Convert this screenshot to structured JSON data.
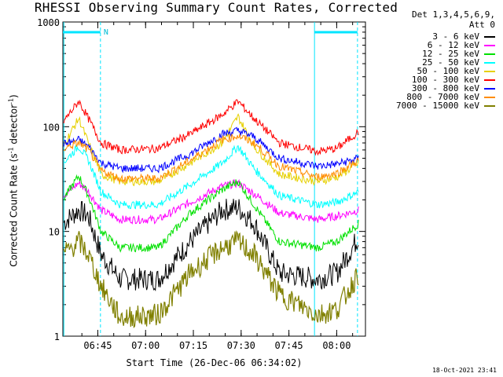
{
  "chart_data": {
    "type": "line",
    "title": "RHESSI Observing Summary Count Rates, Corrected",
    "ylabel_main": "Corrected Count Rate (s",
    "ylabel_sup1": "-1",
    "ylabel_mid": " detector",
    "ylabel_sup2": "-1",
    "ylabel_end": ")",
    "xlabel": "Start Time (26-Dec-06 06:34:02)",
    "yscale": "log",
    "ylim": [
      1,
      1000
    ],
    "xlim": [
      "06:34:02",
      "08:09:00"
    ],
    "y_ticks": [
      "1",
      "10",
      "100",
      "1000"
    ],
    "x_ticks": [
      "06:45",
      "07:00",
      "07:15",
      "07:30",
      "07:45",
      "08:00"
    ],
    "legend_header": [
      "Det 1,3,4,5,6,9,",
      "Att 0"
    ],
    "annotations": {
      "night_marker": "N"
    },
    "timestamp": "18-Oct-2021 23:41",
    "series": [
      {
        "name": "3 - 6 keV",
        "color": "#000000",
        "values": [
          [
            0,
            12
          ],
          [
            5,
            16
          ],
          [
            8,
            14
          ],
          [
            12,
            6
          ],
          [
            18,
            3.5
          ],
          [
            30,
            3.5
          ],
          [
            40,
            8
          ],
          [
            50,
            16
          ],
          [
            55,
            17
          ],
          [
            60,
            12
          ],
          [
            68,
            4
          ],
          [
            80,
            3.5
          ],
          [
            86,
            4
          ],
          [
            93,
            9
          ]
        ]
      },
      {
        "name": "6 - 12 keV",
        "color": "#ff00ff",
        "values": [
          [
            0,
            22
          ],
          [
            5,
            29
          ],
          [
            8,
            24
          ],
          [
            12,
            16
          ],
          [
            18,
            13
          ],
          [
            30,
            13
          ],
          [
            40,
            19
          ],
          [
            50,
            27
          ],
          [
            55,
            29
          ],
          [
            60,
            23
          ],
          [
            68,
            15
          ],
          [
            80,
            13
          ],
          [
            86,
            14
          ],
          [
            93,
            16
          ]
        ]
      },
      {
        "name": "12 - 25 keV",
        "color": "#00e000",
        "values": [
          [
            0,
            20
          ],
          [
            5,
            34
          ],
          [
            8,
            22
          ],
          [
            12,
            10
          ],
          [
            18,
            7
          ],
          [
            30,
            7
          ],
          [
            40,
            15
          ],
          [
            50,
            25
          ],
          [
            55,
            30
          ],
          [
            60,
            18
          ],
          [
            68,
            8
          ],
          [
            80,
            7
          ],
          [
            86,
            8
          ],
          [
            93,
            12
          ]
        ]
      },
      {
        "name": "25 - 50 keV",
        "color": "#00ffff",
        "values": [
          [
            0,
            45
          ],
          [
            5,
            65
          ],
          [
            8,
            48
          ],
          [
            12,
            24
          ],
          [
            18,
            18
          ],
          [
            30,
            18
          ],
          [
            40,
            28
          ],
          [
            50,
            45
          ],
          [
            55,
            65
          ],
          [
            60,
            40
          ],
          [
            68,
            22
          ],
          [
            80,
            18
          ],
          [
            86,
            19
          ],
          [
            93,
            24
          ]
        ]
      },
      {
        "name": "50 - 100 keV",
        "color": "#e6d000",
        "values": [
          [
            0,
            65
          ],
          [
            5,
            120
          ],
          [
            8,
            70
          ],
          [
            12,
            35
          ],
          [
            18,
            30
          ],
          [
            30,
            30
          ],
          [
            40,
            45
          ],
          [
            50,
            70
          ],
          [
            55,
            125
          ],
          [
            60,
            65
          ],
          [
            68,
            35
          ],
          [
            80,
            30
          ],
          [
            86,
            33
          ],
          [
            93,
            45
          ]
        ]
      },
      {
        "name": "100 - 300 keV",
        "color": "#ff0000",
        "values": [
          [
            0,
            110
          ],
          [
            5,
            175
          ],
          [
            8,
            120
          ],
          [
            12,
            70
          ],
          [
            18,
            60
          ],
          [
            30,
            62
          ],
          [
            40,
            85
          ],
          [
            50,
            130
          ],
          [
            55,
            175
          ],
          [
            60,
            120
          ],
          [
            68,
            70
          ],
          [
            80,
            58
          ],
          [
            86,
            62
          ],
          [
            93,
            90
          ]
        ]
      },
      {
        "name": "300 - 800 keV",
        "color": "#0000ff",
        "values": [
          [
            0,
            68
          ],
          [
            5,
            75
          ],
          [
            8,
            65
          ],
          [
            12,
            45
          ],
          [
            18,
            40
          ],
          [
            30,
            40
          ],
          [
            40,
            55
          ],
          [
            50,
            85
          ],
          [
            55,
            92
          ],
          [
            60,
            80
          ],
          [
            68,
            50
          ],
          [
            80,
            42
          ],
          [
            86,
            44
          ],
          [
            93,
            50
          ]
        ]
      },
      {
        "name": "800 - 7000 keV",
        "color": "#ff8c00",
        "values": [
          [
            0,
            62
          ],
          [
            5,
            70
          ],
          [
            8,
            60
          ],
          [
            12,
            38
          ],
          [
            18,
            32
          ],
          [
            30,
            32
          ],
          [
            40,
            48
          ],
          [
            50,
            75
          ],
          [
            55,
            82
          ],
          [
            60,
            70
          ],
          [
            68,
            42
          ],
          [
            80,
            33
          ],
          [
            86,
            36
          ],
          [
            93,
            48
          ]
        ]
      },
      {
        "name": "7000 - 15000 keV",
        "color": "#808000",
        "values": [
          [
            0,
            6
          ],
          [
            5,
            8
          ],
          [
            8,
            6
          ],
          [
            12,
            3
          ],
          [
            18,
            1.5
          ],
          [
            30,
            1.6
          ],
          [
            40,
            4
          ],
          [
            50,
            7
          ],
          [
            55,
            8
          ],
          [
            60,
            6
          ],
          [
            68,
            2.5
          ],
          [
            80,
            1.6
          ],
          [
            86,
            1.8
          ],
          [
            93,
            4
          ]
        ]
      }
    ]
  }
}
